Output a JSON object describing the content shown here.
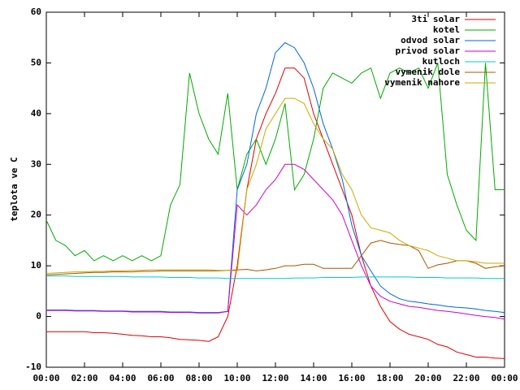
{
  "chart_data": {
    "type": "line",
    "ylabel": "teplota ve C",
    "x": [
      0,
      0.5,
      1,
      1.5,
      2,
      2.5,
      3,
      3.5,
      4,
      4.5,
      5,
      5.5,
      6,
      6.5,
      7,
      7.5,
      8,
      8.5,
      9,
      9.5,
      10,
      10.5,
      11,
      11.5,
      12,
      12.5,
      13,
      13.5,
      14,
      14.5,
      15,
      15.5,
      16,
      16.5,
      17,
      17.5,
      18,
      18.5,
      19,
      19.5,
      20,
      20.5,
      21,
      21.5,
      22,
      22.5,
      23,
      23.5,
      24
    ],
    "xlim": [
      0,
      24
    ],
    "xticks": [
      {
        "value": 0,
        "label": "00:00"
      },
      {
        "value": 2,
        "label": "02:00"
      },
      {
        "value": 4,
        "label": "04:00"
      },
      {
        "value": 6,
        "label": "06:00"
      },
      {
        "value": 8,
        "label": "08:00"
      },
      {
        "value": 10,
        "label": "10:00"
      },
      {
        "value": 12,
        "label": "12:00"
      },
      {
        "value": 14,
        "label": "14:00"
      },
      {
        "value": 16,
        "label": "16:00"
      },
      {
        "value": 18,
        "label": "18:00"
      },
      {
        "value": 20,
        "label": "20:00"
      },
      {
        "value": 22,
        "label": "22:00"
      },
      {
        "value": 24,
        "label": "00:00"
      }
    ],
    "ylim": [
      -10,
      60
    ],
    "yticks": [
      -10,
      0,
      10,
      20,
      30,
      40,
      50,
      60
    ],
    "legend": "top-right",
    "series": [
      {
        "name": "3ti solar",
        "color": "#dd0000",
        "values": [
          -3,
          -3,
          -3,
          -3,
          -3,
          -3.2,
          -3.2,
          -3.3,
          -3.5,
          -3.7,
          -3.8,
          -4,
          -4,
          -4.2,
          -4.5,
          -4.6,
          -4.7,
          -4.9,
          -4,
          0,
          10,
          25,
          35,
          40,
          44,
          49,
          49,
          47,
          40,
          35,
          30,
          25,
          20,
          12,
          6,
          2,
          -1,
          -2.5,
          -3.5,
          -4,
          -4.5,
          -5.5,
          -6,
          -7,
          -7.5,
          -8,
          -8,
          -8.2,
          -8.3
        ]
      },
      {
        "name": "kotel",
        "color": "#00aa00",
        "values": [
          19,
          15,
          14,
          12,
          13,
          11,
          12,
          11,
          12,
          11,
          12,
          11,
          12,
          22,
          26,
          48,
          40,
          35,
          32,
          44,
          25,
          32,
          35,
          30,
          35,
          42,
          25,
          28,
          35,
          45,
          48,
          47,
          46,
          48,
          49,
          43,
          48,
          49,
          48,
          49,
          45,
          50,
          28,
          22,
          17,
          15,
          50,
          25,
          25
        ]
      },
      {
        "name": "odvod solar",
        "color": "#0066dd",
        "values": [
          1.3,
          1.3,
          1.3,
          1.2,
          1.2,
          1.2,
          1.1,
          1.1,
          1.1,
          1,
          1,
          1,
          1,
          0.9,
          0.9,
          0.9,
          0.8,
          0.8,
          0.8,
          1,
          25,
          30,
          40,
          45,
          52,
          54,
          53,
          50,
          45,
          38,
          33,
          27,
          18,
          12,
          9,
          6,
          4.5,
          3.5,
          3,
          2.8,
          2.5,
          2.3,
          2,
          1.8,
          1.7,
          1.5,
          1.2,
          1,
          0.8
        ]
      },
      {
        "name": "privod solar",
        "color": "#cc00cc",
        "values": [
          1.2,
          1.2,
          1.2,
          1.1,
          1.1,
          1.1,
          1,
          1,
          1,
          0.9,
          0.9,
          0.9,
          0.9,
          0.8,
          0.8,
          0.8,
          0.7,
          0.7,
          0.7,
          1,
          22,
          20,
          22,
          25,
          27,
          30,
          30,
          29,
          27,
          25,
          23,
          20,
          15,
          10,
          6,
          4,
          3,
          2.5,
          2,
          1.8,
          1.5,
          1.2,
          1,
          0.8,
          0.5,
          0.2,
          0,
          -0.2,
          -0.5
        ]
      },
      {
        "name": "kutloch",
        "color": "#00cccc",
        "values": [
          8,
          8,
          8,
          7.9,
          7.9,
          7.9,
          7.9,
          7.9,
          7.9,
          7.8,
          7.8,
          7.8,
          7.8,
          7.7,
          7.7,
          7.7,
          7.6,
          7.6,
          7.6,
          7.5,
          7.5,
          7.5,
          7.5,
          7.5,
          7.5,
          7.5,
          7.6,
          7.6,
          7.6,
          7.7,
          7.7,
          7.7,
          7.7,
          7.8,
          7.8,
          7.8,
          7.8,
          7.8,
          7.8,
          7.7,
          7.7,
          7.7,
          7.6,
          7.6,
          7.6,
          7.6,
          7.5,
          7.5,
          7.5
        ]
      },
      {
        "name": "vymenik dole",
        "color": "#aa5500",
        "values": [
          8.2,
          8.3,
          8.4,
          8.5,
          8.6,
          8.7,
          8.7,
          8.8,
          8.8,
          8.8,
          8.9,
          8.9,
          9,
          9,
          9,
          9,
          9,
          9,
          9,
          9.1,
          9.2,
          9.3,
          9,
          9.2,
          9.5,
          10,
          10,
          10.3,
          10.3,
          9.5,
          9.5,
          9.5,
          9.5,
          12,
          14.5,
          15,
          14.5,
          14.2,
          14,
          13,
          9.5,
          10.2,
          10.5,
          11,
          11,
          10.5,
          9.5,
          9.8,
          10
        ]
      },
      {
        "name": "vymenik nahore",
        "color": "#ccaa00",
        "values": [
          8.5,
          8.6,
          8.7,
          8.8,
          8.8,
          8.9,
          8.9,
          9,
          9,
          9.1,
          9.1,
          9.2,
          9.2,
          9.2,
          9.2,
          9.2,
          9.2,
          9.2,
          9.1,
          9.1,
          9,
          25,
          30,
          37,
          40,
          43,
          43,
          42,
          38,
          35,
          33,
          28,
          25,
          20,
          17.5,
          17,
          16.5,
          15,
          14,
          13.5,
          13,
          12,
          11.5,
          11,
          11,
          10.8,
          10.5,
          10.5,
          10.5
        ]
      }
    ]
  }
}
